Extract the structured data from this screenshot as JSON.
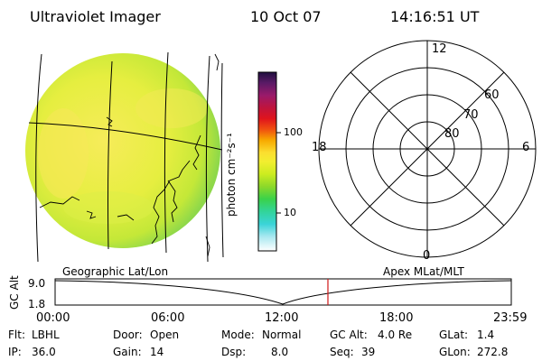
{
  "header": {
    "instrument": "Ultraviolet Imager",
    "date": "10 Oct 07",
    "time": "14:16:51 UT"
  },
  "colorbar": {
    "unit_label": "photon cm⁻²s⁻¹",
    "ticks": [
      "100",
      "10"
    ],
    "colors": [
      "#201040",
      "#5a1a66",
      "#8a1a6a",
      "#c0143c",
      "#e0141c",
      "#f05010",
      "#f7a800",
      "#fbde30",
      "#f4ee30",
      "#ccec20",
      "#8cd82a",
      "#3ad24a",
      "#32d49a",
      "#3ad4d8",
      "#a8e8f0",
      "#e0f4f8",
      "#ffffff"
    ]
  },
  "polar_plot": {
    "mlt_labels": {
      "top": "12",
      "bottom": "0",
      "left": "18",
      "right": "6"
    },
    "lat_labels": [
      "60",
      "70",
      "80"
    ]
  },
  "map_label": "Geographic Lat/Lon",
  "polar_label": "Apex MLat/MLT",
  "timeline": {
    "axis_title": "GC Alt",
    "y_ticks": [
      "9.0",
      "1.8"
    ],
    "x_ticks": [
      "00:00",
      "06:00",
      "12:00",
      "18:00",
      "23:59"
    ],
    "current_time_marker": "14:16:51",
    "marker_color": "#d01818"
  },
  "status": {
    "filter": {
      "label": "Flt:",
      "value": "LBHL"
    },
    "door": {
      "label": "Door:",
      "value": "Open"
    },
    "mode": {
      "label": "Mode:",
      "value": "Normal"
    },
    "gc_alt": {
      "label": "GC Alt:",
      "value": "4.0 Re"
    },
    "glat": {
      "label": "GLat:",
      "value": "1.4"
    },
    "ip": {
      "label": "IP:",
      "value": "36.0"
    },
    "gain": {
      "label": "Gain:",
      "value": "14"
    },
    "dsp": {
      "label": "Dsp:",
      "value": "8.0"
    },
    "seq": {
      "label": "Seq:",
      "value": "39"
    },
    "glon": {
      "label": "GLon:",
      "value": "272.8"
    }
  }
}
